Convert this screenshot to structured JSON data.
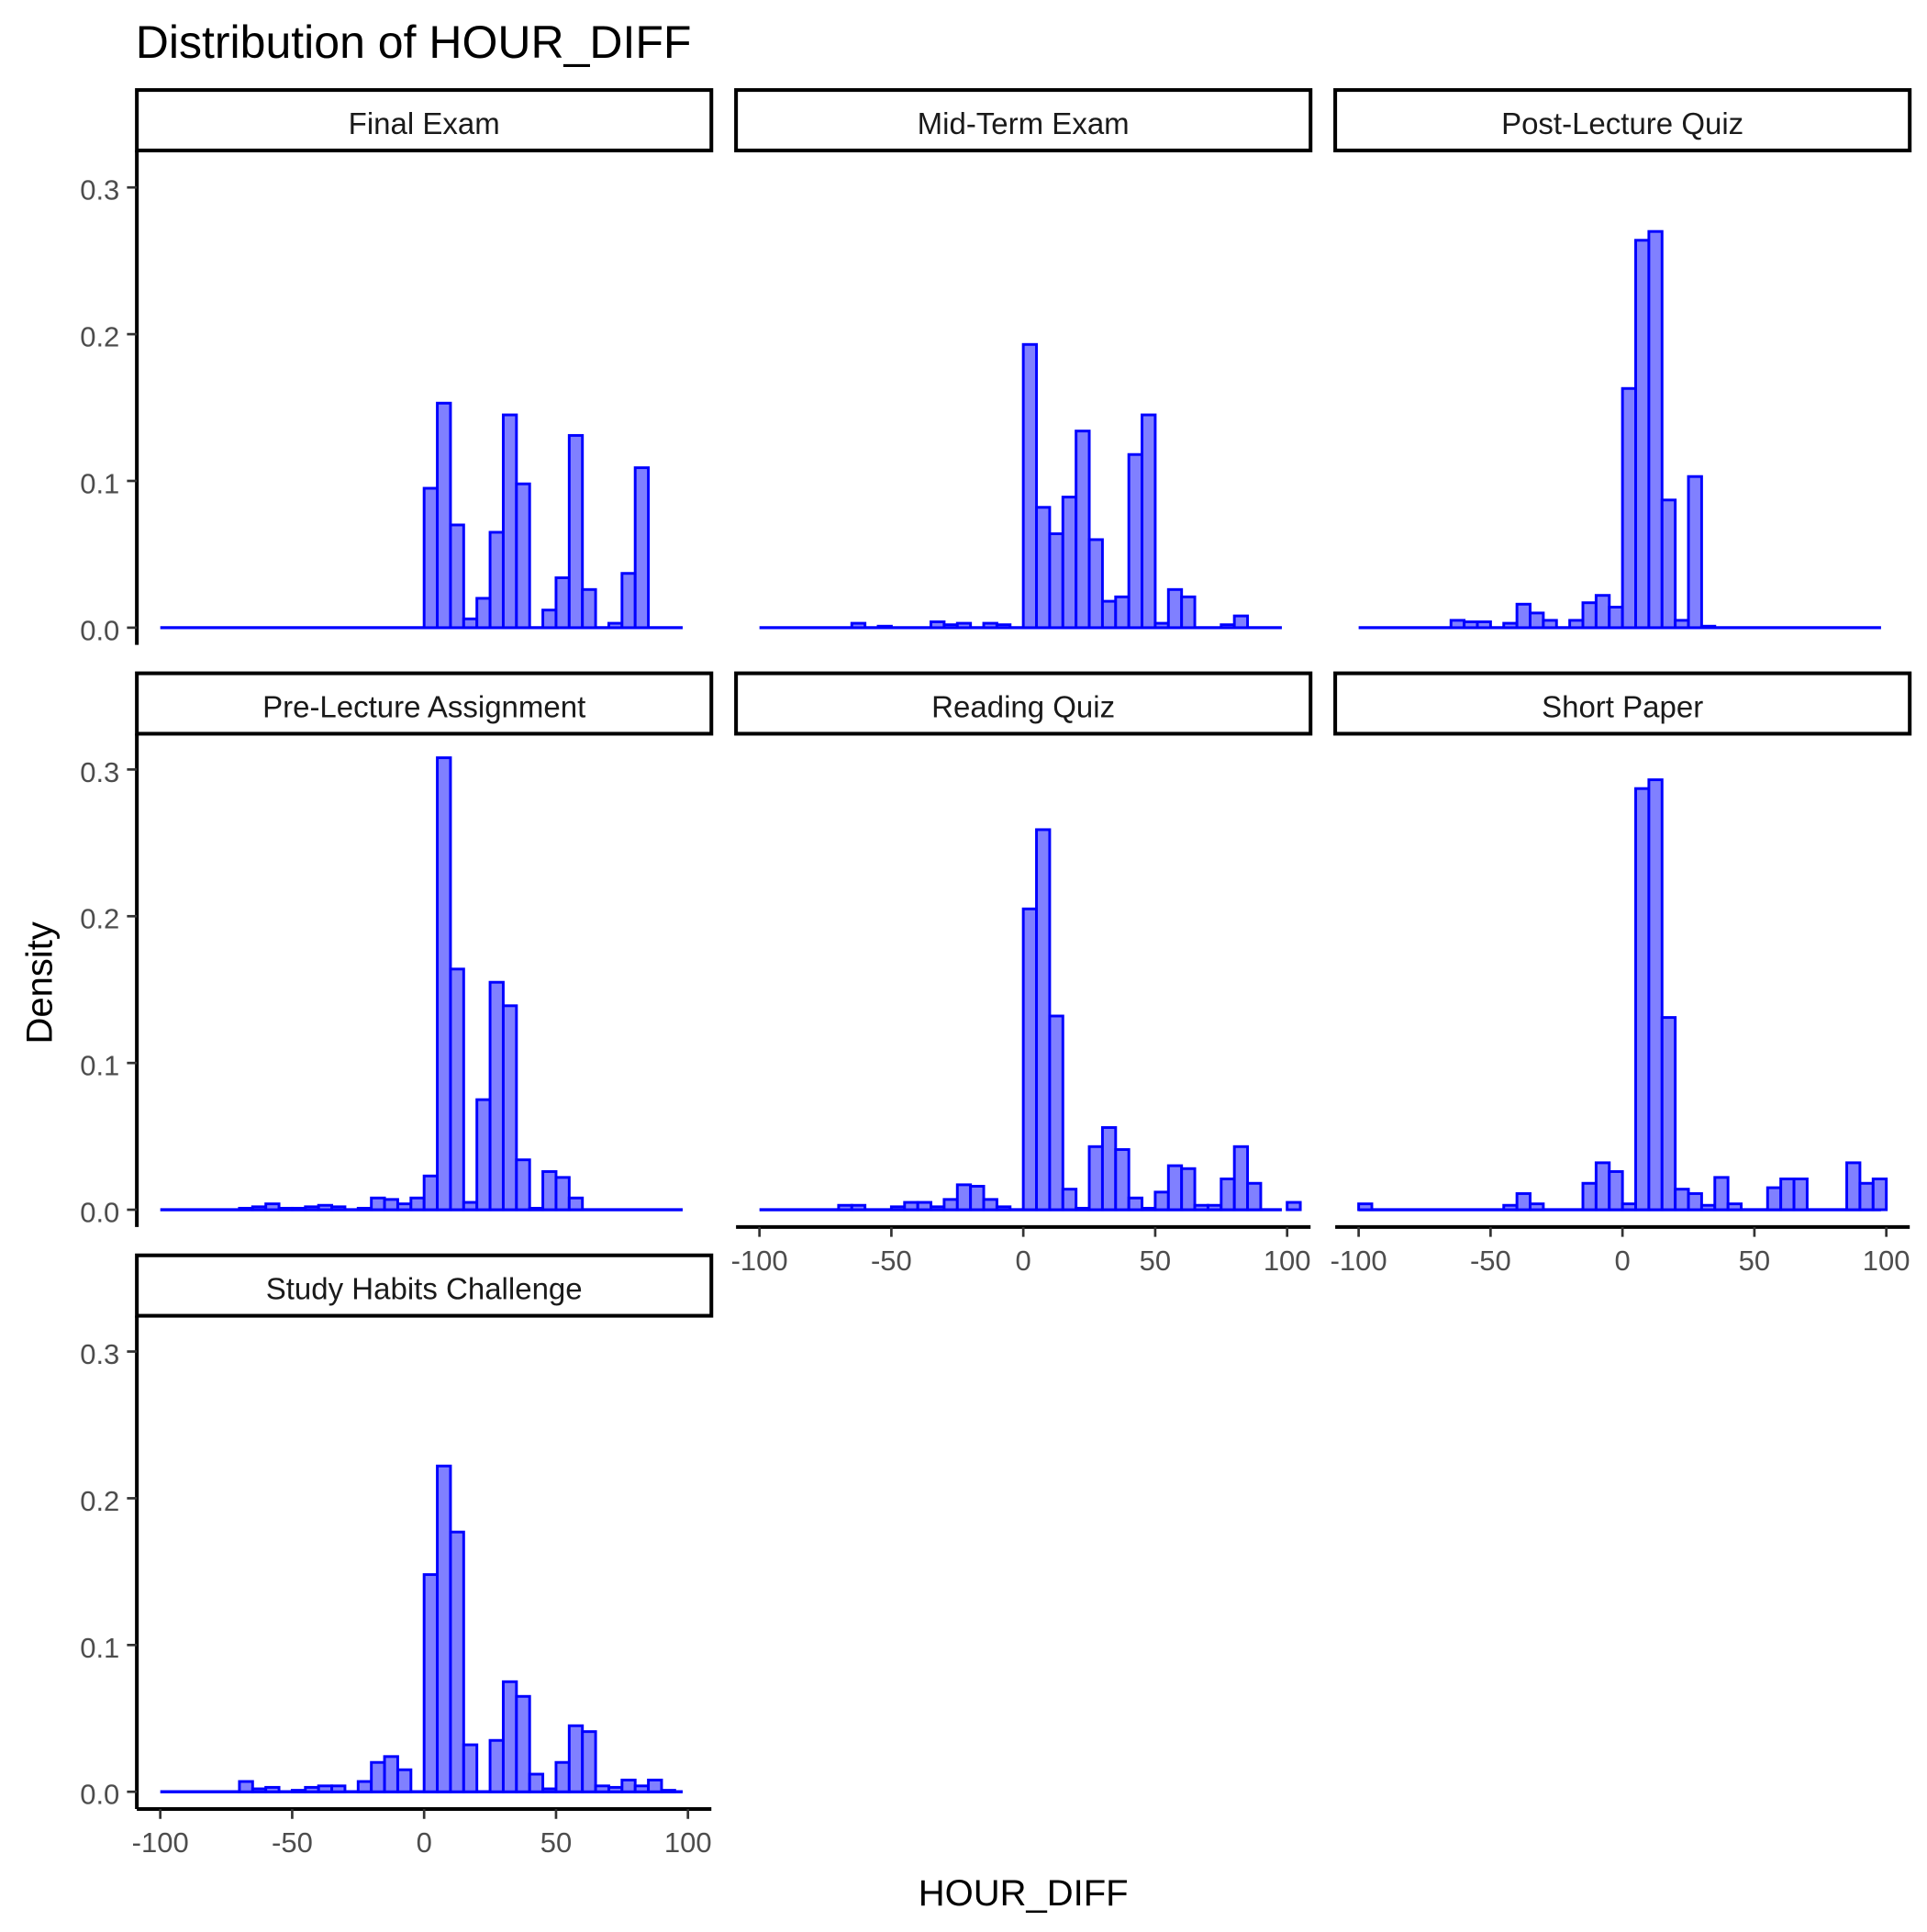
{
  "chart_data": {
    "type": "bar",
    "subtype": "faceted-histogram",
    "title": "Distribution of HOUR_DIFF",
    "xlabel": "HOUR_DIFF",
    "ylabel": "Density",
    "xlim": [
      -100,
      100
    ],
    "ylim": [
      0,
      0.3
    ],
    "x_ticks": [
      -100,
      -50,
      0,
      50,
      100
    ],
    "y_ticks": [
      0.0,
      0.1,
      0.2,
      0.3
    ],
    "x_tick_labels": [
      "-100",
      "-50",
      "0",
      "50",
      "100"
    ],
    "y_tick_labels": [
      "0.0",
      "0.1",
      "0.2",
      "0.3"
    ],
    "bin_width": 5,
    "bins_start": -100,
    "grid": false,
    "legend": "none",
    "colors": {
      "bar_fill": "#8080ff",
      "bar_outline": "#0000ff"
    },
    "facets": [
      {
        "name": "Final Exam",
        "values": [
          0,
          0,
          0,
          0,
          0,
          0,
          0,
          0,
          0,
          0,
          0,
          0,
          0,
          0,
          0,
          0,
          0,
          0,
          0,
          0,
          0.095,
          0.153,
          0.07,
          0.006,
          0.02,
          0.065,
          0.145,
          0.098,
          0,
          0.012,
          0.034,
          0.131,
          0.026,
          0,
          0.003,
          0.037,
          0.109,
          0,
          0,
          0,
          0
        ]
      },
      {
        "name": "Mid-Term Exam",
        "values": [
          0,
          0,
          0,
          0,
          0,
          0,
          0,
          0.003,
          0,
          0.001,
          0,
          0,
          0,
          0.004,
          0.002,
          0.003,
          0,
          0.003,
          0.002,
          0,
          0.193,
          0.082,
          0.064,
          0.089,
          0.134,
          0.06,
          0.018,
          0.021,
          0.118,
          0.145,
          0.003,
          0.026,
          0.021,
          0,
          0,
          0.002,
          0.008,
          0,
          0,
          0,
          0
        ]
      },
      {
        "name": "Post-Lecture Quiz",
        "values": [
          0,
          0,
          0,
          0,
          0,
          0,
          0,
          0.005,
          0.004,
          0.004,
          0,
          0.003,
          0.016,
          0.01,
          0.005,
          0,
          0.005,
          0.017,
          0.022,
          0.014,
          0.163,
          0.264,
          0.27,
          0.087,
          0.005,
          0.103,
          0.001,
          0,
          0,
          0,
          0,
          0,
          0,
          0,
          0,
          0,
          0,
          0,
          0,
          0,
          0
        ]
      },
      {
        "name": "Pre-Lecture Assignment",
        "values": [
          0,
          0,
          0,
          0,
          0,
          0,
          0.001,
          0.002,
          0.004,
          0.001,
          0.001,
          0.002,
          0.003,
          0.002,
          0,
          0.001,
          0.008,
          0.007,
          0.004,
          0.008,
          0.023,
          0.308,
          0.164,
          0.005,
          0.075,
          0.155,
          0.139,
          0.034,
          0.001,
          0.026,
          0.022,
          0.008,
          0,
          0,
          0,
          0,
          0,
          0,
          0,
          0,
          0
        ]
      },
      {
        "name": "Reading Quiz",
        "values": [
          0,
          0,
          0,
          0,
          0,
          0,
          0.003,
          0.003,
          0,
          0,
          0.002,
          0.005,
          0.005,
          0.002,
          0.007,
          0.017,
          0.016,
          0.007,
          0.002,
          0,
          0.205,
          0.259,
          0.132,
          0.014,
          0.001,
          0.043,
          0.056,
          0.041,
          0.008,
          0.001,
          0.012,
          0.03,
          0.028,
          0.003,
          0.003,
          0.021,
          0.043,
          0.018,
          0,
          0,
          0.005
        ]
      },
      {
        "name": "Short Paper",
        "values": [
          0.004,
          0,
          0,
          0,
          0,
          0,
          0,
          0,
          0,
          0,
          0,
          0.003,
          0.011,
          0.004,
          0,
          0,
          0,
          0.018,
          0.032,
          0.026,
          0.004,
          0.287,
          0.293,
          0.131,
          0.014,
          0.011,
          0.003,
          0.022,
          0.004,
          0,
          0,
          0.015,
          0.021,
          0.021,
          0,
          0,
          0,
          0.032,
          0.018,
          0.021,
          0
        ]
      },
      {
        "name": "Study Habits Challenge",
        "values": [
          0,
          0,
          0,
          0,
          0,
          0,
          0.007,
          0.002,
          0.003,
          0,
          0.001,
          0.003,
          0.004,
          0.004,
          0,
          0.007,
          0.02,
          0.024,
          0.015,
          0,
          0.148,
          0.222,
          0.177,
          0.032,
          0,
          0.035,
          0.075,
          0.065,
          0.012,
          0.002,
          0.02,
          0.045,
          0.041,
          0.004,
          0.003,
          0.008,
          0.004,
          0.008,
          0.001,
          0,
          0
        ]
      }
    ]
  }
}
